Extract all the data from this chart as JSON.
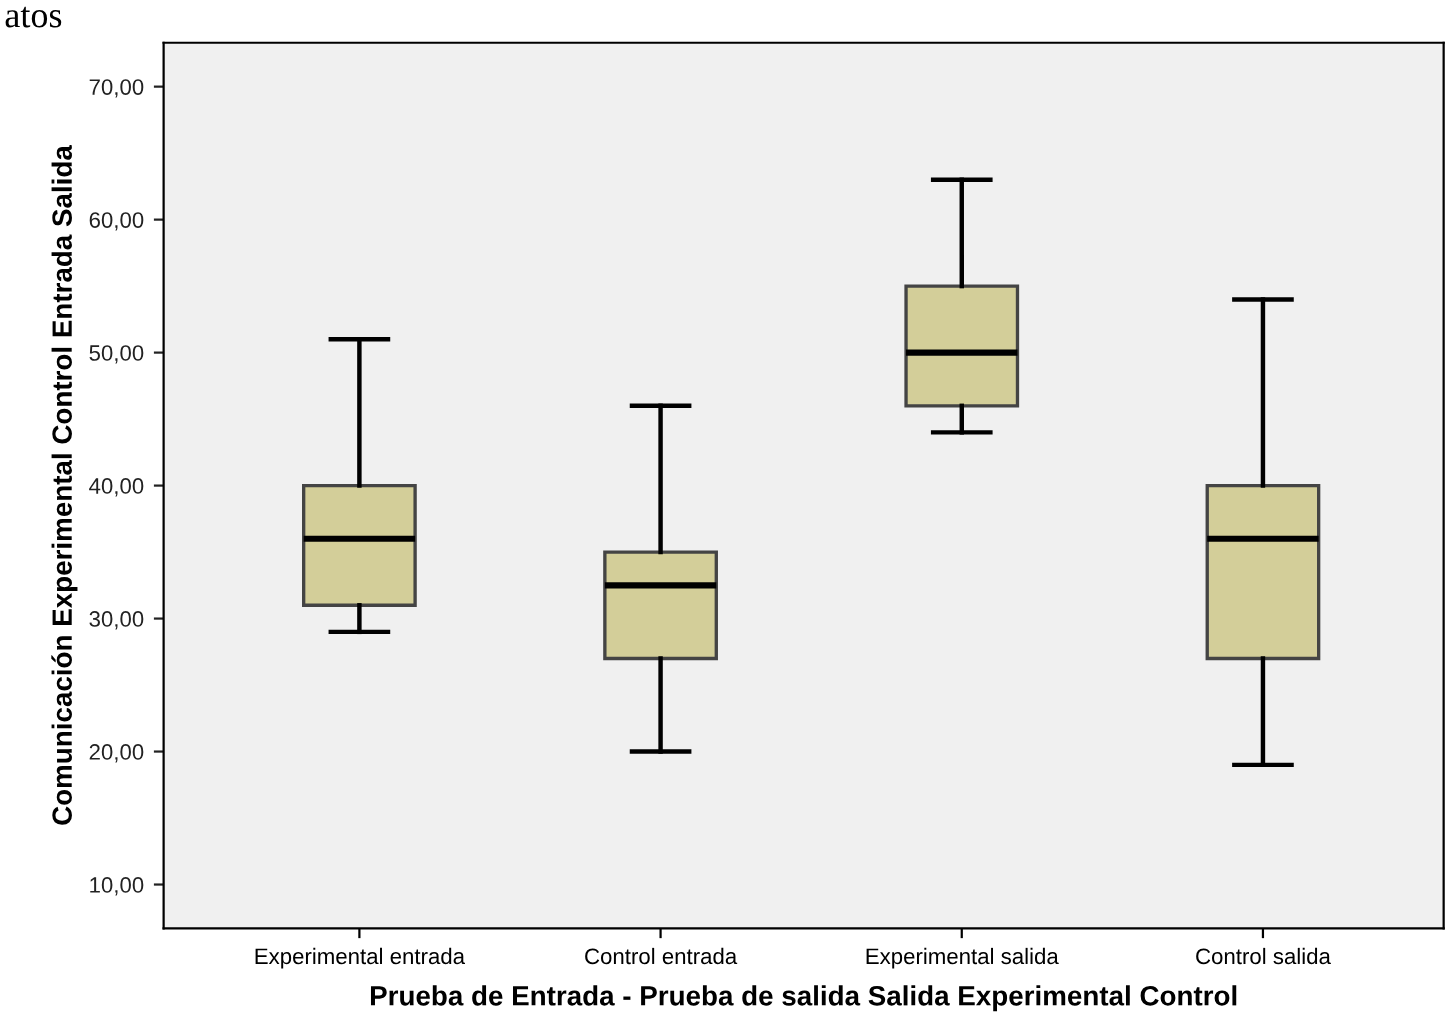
{
  "chart_data": {
    "type": "box",
    "annotations": [
      "atos"
    ],
    "xlabel": "Prueba de Entrada - Prueba de salida Salida Experimental Control",
    "ylabel": "Comunicación Experimental Control Entrada Salida",
    "categories": [
      "Experimental entrada",
      "Control entrada",
      "Experimental salida",
      "Control salida"
    ],
    "boxes": [
      {
        "low": 29,
        "q1": 31,
        "median": 36,
        "q3": 40,
        "high": 51
      },
      {
        "low": 20,
        "q1": 27,
        "median": 32.5,
        "q3": 35,
        "high": 46
      },
      {
        "low": 44,
        "q1": 46,
        "median": 50,
        "q3": 55,
        "high": 63
      },
      {
        "low": 19,
        "q1": 27,
        "median": 36,
        "q3": 40,
        "high": 54
      }
    ],
    "color": "#d3ce99",
    "ylim": [
      6.7,
      73.3
    ],
    "yticks": [
      {
        "value": 10,
        "label": "10,00"
      },
      {
        "value": 20,
        "label": "20,00"
      },
      {
        "value": 30,
        "label": "30,00"
      },
      {
        "value": 40,
        "label": "40,00"
      },
      {
        "value": 50,
        "label": "50,00"
      },
      {
        "value": 60,
        "label": "60,00"
      },
      {
        "value": 70,
        "label": "70,00"
      }
    ],
    "grid": false
  }
}
